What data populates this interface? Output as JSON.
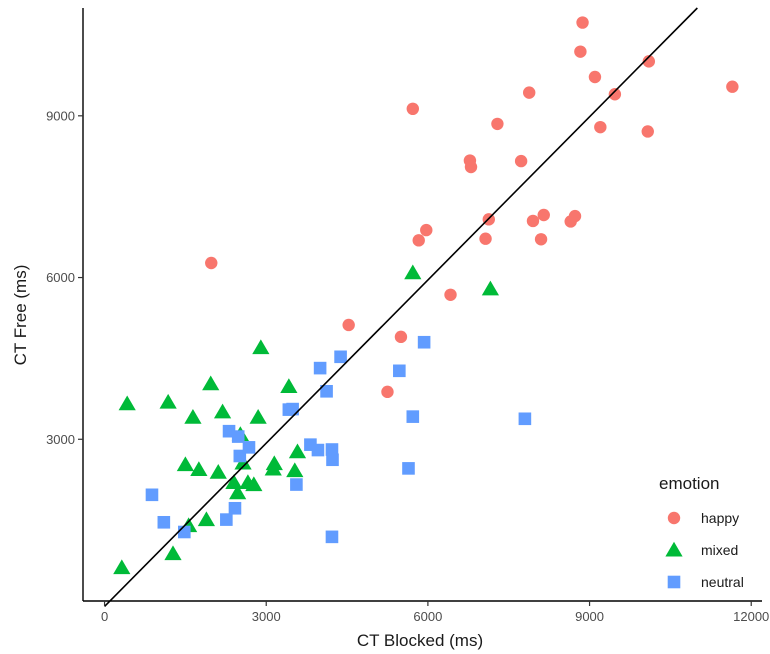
{
  "chart_data": {
    "type": "scatter",
    "title": "",
    "xlabel": "CT Blocked (ms)",
    "ylabel": "CT Free (ms)",
    "xlim": [
      -400,
      12200
    ],
    "ylim": [
      0,
      11000
    ],
    "x_ticks": [
      0,
      3000,
      6000,
      9000,
      12000
    ],
    "y_ticks": [
      3000,
      6000,
      9000
    ],
    "grid": false,
    "legend": {
      "title": "emotion",
      "position": "bottom-right"
    },
    "fit_line": {
      "x": [
        0,
        11000
      ],
      "y": [
        -100,
        11000
      ],
      "color": "#000000"
    },
    "series": [
      {
        "name": "happy",
        "marker": "circle",
        "color": "#F8766D",
        "points": [
          [
            1980,
            6270
          ],
          [
            4530,
            5120
          ],
          [
            5250,
            3880
          ],
          [
            5500,
            4900
          ],
          [
            5720,
            9130
          ],
          [
            5830,
            6690
          ],
          [
            5970,
            6880
          ],
          [
            6420,
            5680
          ],
          [
            6780,
            8170
          ],
          [
            6800,
            8050
          ],
          [
            7070,
            6720
          ],
          [
            7130,
            7080
          ],
          [
            7290,
            8850
          ],
          [
            7730,
            8160
          ],
          [
            7880,
            9430
          ],
          [
            7950,
            7050
          ],
          [
            8100,
            6710
          ],
          [
            8150,
            7160
          ],
          [
            8650,
            7040
          ],
          [
            8730,
            7140
          ],
          [
            8830,
            10190
          ],
          [
            8870,
            10730
          ],
          [
            9100,
            9720
          ],
          [
            9200,
            8790
          ],
          [
            9470,
            9400
          ],
          [
            10080,
            8710
          ],
          [
            10100,
            10010
          ],
          [
            11650,
            9540
          ]
        ]
      },
      {
        "name": "mixed",
        "marker": "triangle",
        "color": "#00BA38",
        "points": [
          [
            320,
            620
          ],
          [
            420,
            3660
          ],
          [
            1180,
            3690
          ],
          [
            1270,
            880
          ],
          [
            1500,
            2530
          ],
          [
            1560,
            1400
          ],
          [
            1640,
            3410
          ],
          [
            1750,
            2440
          ],
          [
            1890,
            1510
          ],
          [
            1970,
            4030
          ],
          [
            2110,
            2390
          ],
          [
            2190,
            3510
          ],
          [
            2400,
            2200
          ],
          [
            2470,
            2010
          ],
          [
            2520,
            3090
          ],
          [
            2570,
            2560
          ],
          [
            2660,
            2200
          ],
          [
            2770,
            2160
          ],
          [
            2850,
            3410
          ],
          [
            2900,
            4700
          ],
          [
            3130,
            2450
          ],
          [
            3150,
            2550
          ],
          [
            3420,
            3980
          ],
          [
            3530,
            2420
          ],
          [
            3580,
            2770
          ],
          [
            5720,
            6090
          ],
          [
            7160,
            5790
          ]
        ]
      },
      {
        "name": "neutral",
        "marker": "square",
        "color": "#619CFF",
        "points": [
          [
            880,
            1970
          ],
          [
            1100,
            1460
          ],
          [
            1480,
            1280
          ],
          [
            2260,
            1510
          ],
          [
            2310,
            3150
          ],
          [
            2420,
            1720
          ],
          [
            2480,
            3050
          ],
          [
            2510,
            2690
          ],
          [
            2680,
            2850
          ],
          [
            3420,
            3550
          ],
          [
            3490,
            3560
          ],
          [
            3560,
            2160
          ],
          [
            3820,
            2900
          ],
          [
            3960,
            2800
          ],
          [
            4000,
            4320
          ],
          [
            4120,
            3890
          ],
          [
            4220,
            2810
          ],
          [
            4230,
            2620
          ],
          [
            4220,
            1190
          ],
          [
            4380,
            4530
          ],
          [
            5470,
            4270
          ],
          [
            5640,
            2460
          ],
          [
            5720,
            3420
          ],
          [
            5930,
            4800
          ],
          [
            7800,
            3380
          ]
        ]
      }
    ]
  }
}
